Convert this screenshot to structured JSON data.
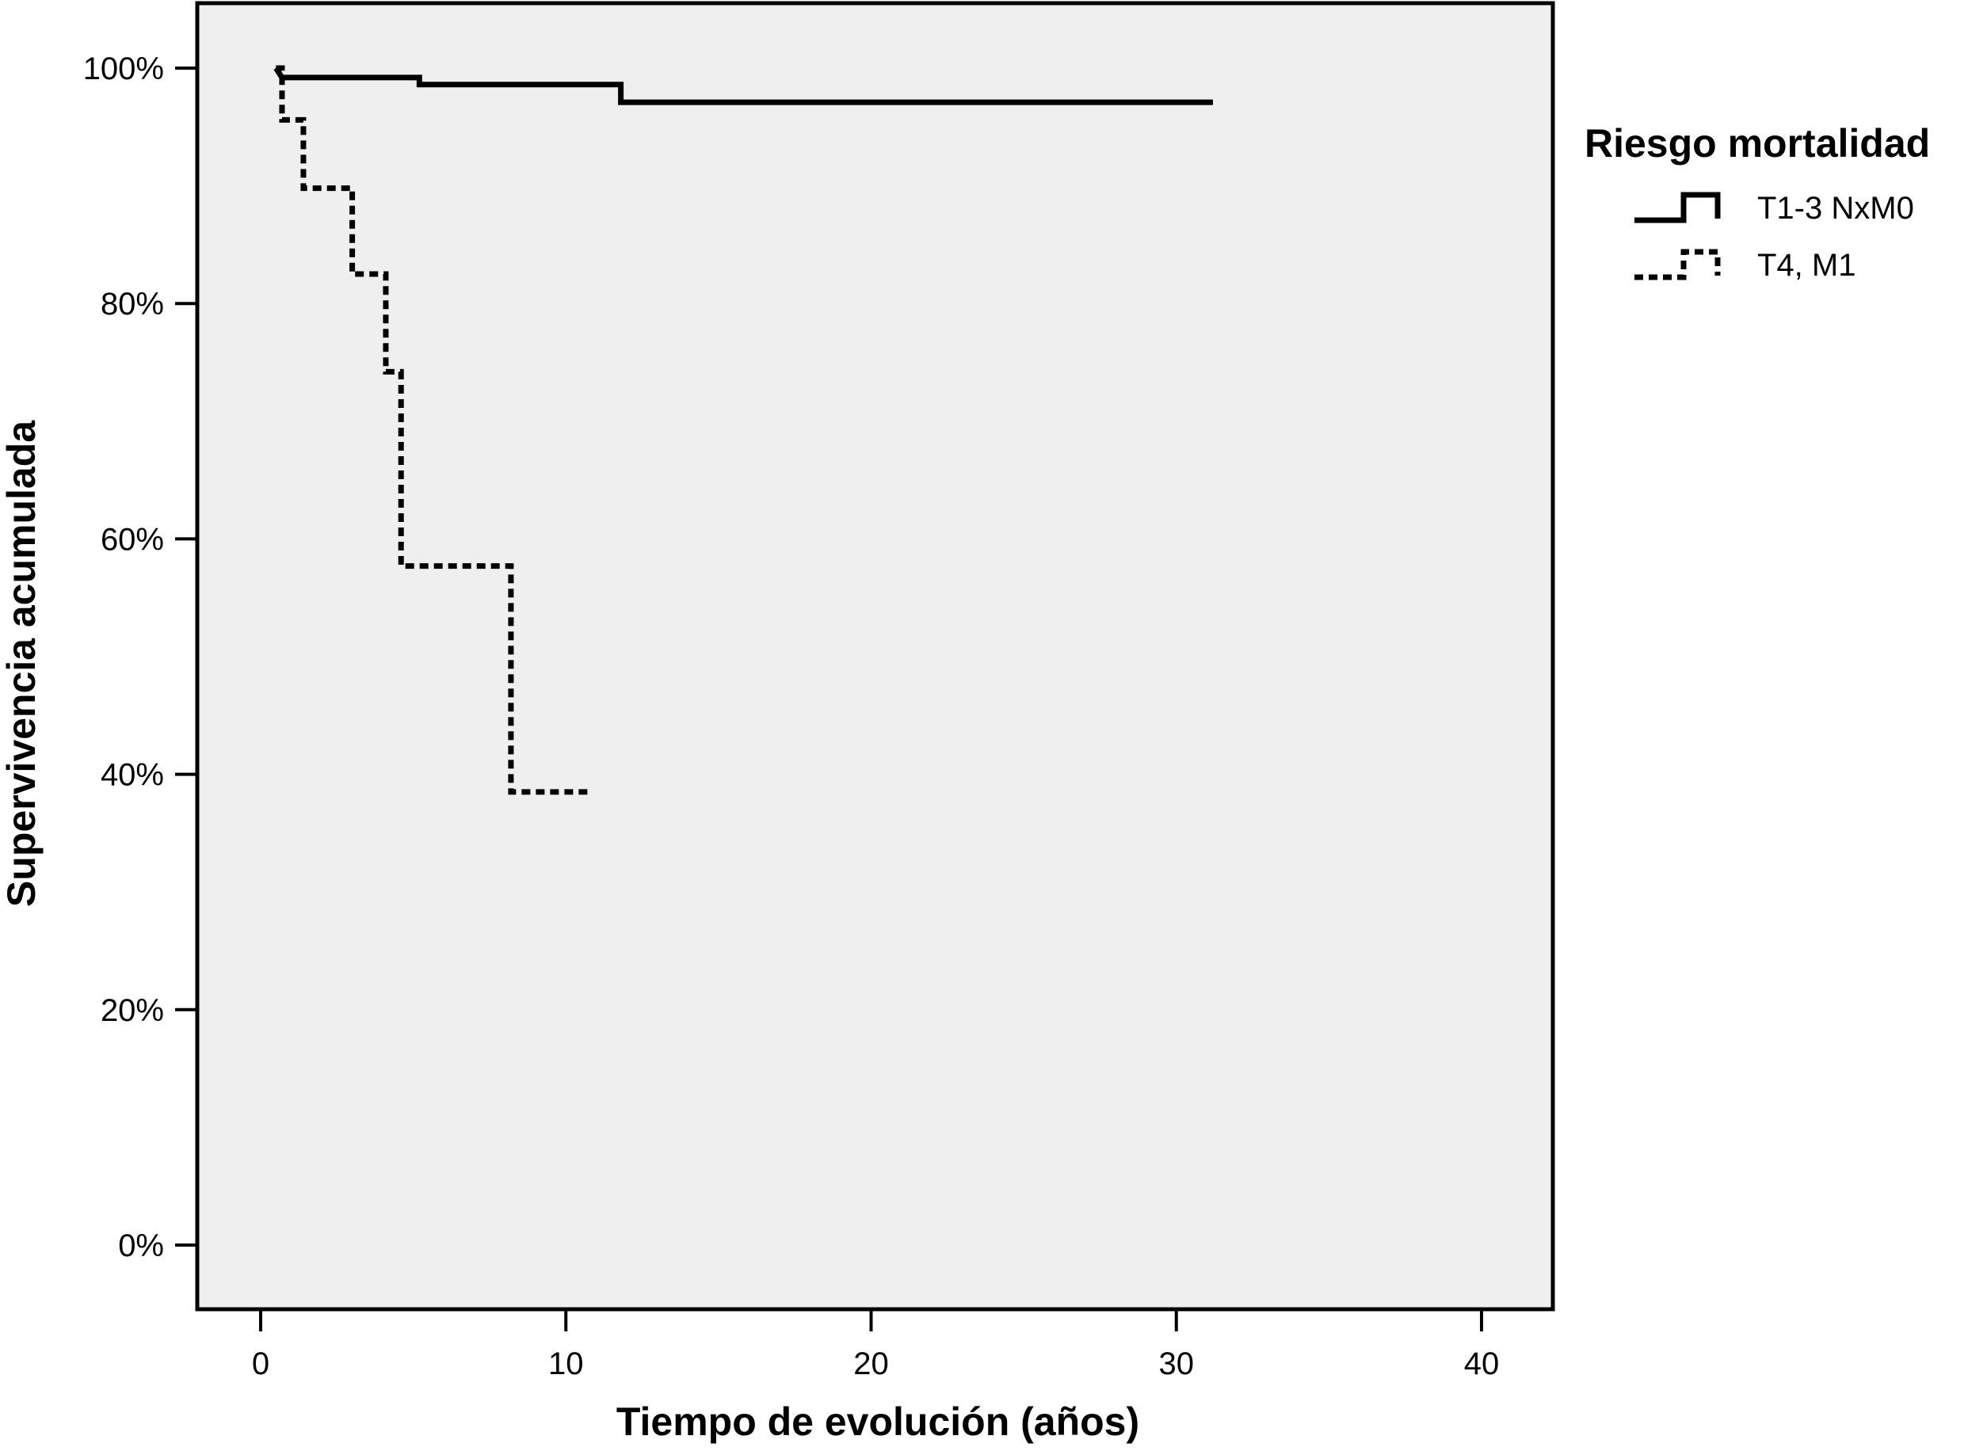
{
  "chart_data": {
    "type": "line",
    "step": true,
    "xlabel": "Tiempo de evolución (años)",
    "ylabel": "Supervivencia acumulada",
    "xlim": [
      0,
      40
    ],
    "ylim": [
      0,
      1
    ],
    "x_ticks": [
      {
        "value": 0,
        "label": "0"
      },
      {
        "value": 10,
        "label": "10"
      },
      {
        "value": 20,
        "label": "20"
      },
      {
        "value": 30,
        "label": "30"
      },
      {
        "value": 40,
        "label": "40"
      }
    ],
    "y_ticks": [
      {
        "value": 0,
        "label": "0%"
      },
      {
        "value": 0.2,
        "label": "20%"
      },
      {
        "value": 0.4,
        "label": "40%"
      },
      {
        "value": 0.6,
        "label": "60%"
      },
      {
        "value": 0.8,
        "label": "80%"
      },
      {
        "value": 1.0,
        "label": "100%"
      }
    ],
    "grid": false,
    "plot_background": "#efefef",
    "legend": {
      "title": "Riesgo mortalidad",
      "position": "right-top"
    },
    "series": [
      {
        "name": "T1-3 NxM0",
        "style": "solid",
        "color": "#000000",
        "points": [
          [
            0.5,
            1.0
          ],
          [
            0.7,
            0.992
          ],
          [
            5.2,
            0.992
          ],
          [
            5.2,
            0.986
          ],
          [
            11.8,
            0.986
          ],
          [
            11.8,
            0.971
          ],
          [
            31.2,
            0.971
          ]
        ]
      },
      {
        "name": "T4, M1",
        "style": "dotted",
        "color": "#000000",
        "points": [
          [
            0.5,
            1.0
          ],
          [
            0.7,
            1.0
          ],
          [
            0.7,
            0.956
          ],
          [
            1.4,
            0.956
          ],
          [
            1.4,
            0.898
          ],
          [
            3.0,
            0.898
          ],
          [
            3.0,
            0.825
          ],
          [
            4.1,
            0.825
          ],
          [
            4.1,
            0.742
          ],
          [
            4.6,
            0.742
          ],
          [
            4.6,
            0.577
          ],
          [
            8.2,
            0.577
          ],
          [
            8.2,
            0.385
          ],
          [
            10.8,
            0.385
          ]
        ]
      }
    ]
  }
}
